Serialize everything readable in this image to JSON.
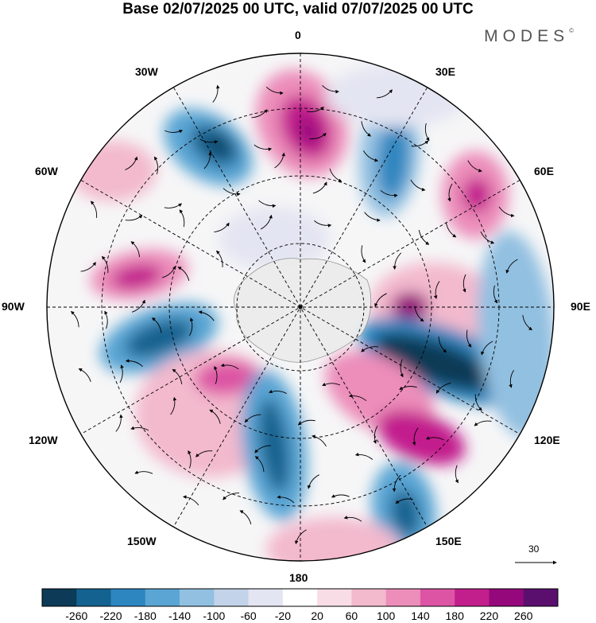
{
  "title": "Base 02/07/2025 00 UTC, valid 07/07/2025 00 UTC",
  "brand": {
    "name": "MODES",
    "mark": "©"
  },
  "map": {
    "projection": "south-polar-stereographic",
    "longitude_labels": [
      "0",
      "30E",
      "60E",
      "90E",
      "120E",
      "150E",
      "180",
      "150W",
      "120W",
      "90W",
      "60W",
      "30W"
    ],
    "reference_vector": {
      "value": "30"
    }
  },
  "colorbar": {
    "tick_labels": [
      "-260",
      "-220",
      "-180",
      "-140",
      "-100",
      "-60",
      "-20",
      "20",
      "60",
      "100",
      "140",
      "180",
      "220",
      "260"
    ],
    "colors": [
      "#0c3a57",
      "#14628f",
      "#2d86c0",
      "#5aa5d4",
      "#92c0e1",
      "#c3d3e9",
      "#e4e5f2",
      "#ffffff",
      "#f9dde6",
      "#f3b9cd",
      "#ec8dba",
      "#dd54a4",
      "#c21f8d",
      "#95087b",
      "#5a0f6e"
    ]
  }
}
